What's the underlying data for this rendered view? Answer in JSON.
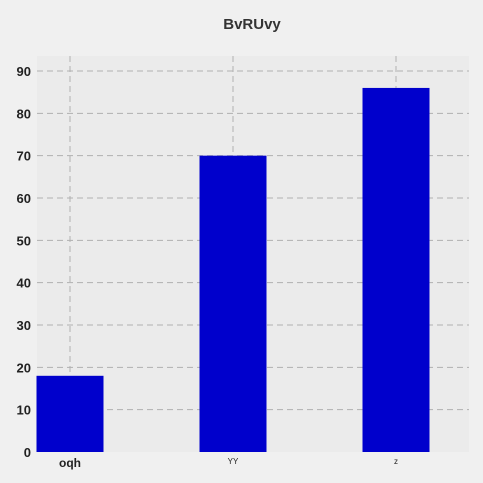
{
  "chart_data": {
    "type": "bar",
    "title": "BvRUvy",
    "categories": [
      "oqh",
      "YY",
      "z"
    ],
    "values": [
      18,
      70,
      86
    ],
    "xlabel": "",
    "ylabel": "",
    "ylim": [
      0,
      90
    ],
    "yticks": [
      0,
      10,
      20,
      30,
      40,
      50,
      60,
      70,
      80,
      90
    ],
    "grid": true,
    "bar_color": "#0000cc",
    "plot_background": "#ebebeb",
    "figure_background": "#f0f0f0"
  }
}
